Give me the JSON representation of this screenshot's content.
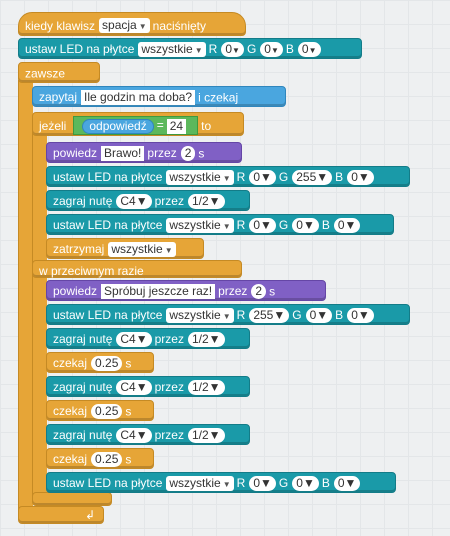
{
  "event": {
    "label1": "kiedy klawisz",
    "key": "spacja",
    "label2": "naciśnięty"
  },
  "led_top": {
    "label": "ustaw LED na płytce",
    "target": "wszystkie",
    "r_label": "R",
    "r": "0",
    "g_label": "G",
    "g": "0",
    "b_label": "B",
    "b": "0"
  },
  "forever": {
    "label": "zawsze"
  },
  "ask": {
    "label1": "zapytaj",
    "question": "Ile godzin ma doba?",
    "label2": "i czekaj"
  },
  "if": {
    "label": "jeżeli",
    "sensor": "odpowiedź",
    "op": "=",
    "value": "24",
    "to": "to"
  },
  "say1": {
    "label": "powiedz",
    "text": "Brawo!",
    "for": "przez",
    "secs": "2",
    "unit": "s"
  },
  "led1": {
    "label": "ustaw LED na płytce",
    "target": "wszystkie",
    "r_label": "R",
    "r": "0",
    "g_label": "G",
    "g": "255",
    "b_label": "B",
    "b": "0"
  },
  "note1": {
    "label": "zagraj nutę",
    "note": "C4",
    "for": "przez",
    "len": "1/2"
  },
  "led2": {
    "label": "ustaw LED na płytce",
    "target": "wszystkie",
    "r_label": "R",
    "r": "0",
    "g_label": "G",
    "g": "0",
    "b_label": "B",
    "b": "0"
  },
  "stop": {
    "label": "zatrzymaj",
    "target": "wszystkie"
  },
  "else": {
    "label": "w przeciwnym razie"
  },
  "say2": {
    "label": "powiedz",
    "text": "Spróbuj jeszcze raz!",
    "for": "przez",
    "secs": "2",
    "unit": "s"
  },
  "led3": {
    "label": "ustaw LED na płytce",
    "target": "wszystkie",
    "r_label": "R",
    "r": "255",
    "g_label": "G",
    "g": "0",
    "b_label": "B",
    "b": "0"
  },
  "note2": {
    "label": "zagraj nutę",
    "note": "C4",
    "for": "przez",
    "len": "1/2"
  },
  "wait1": {
    "label": "czekaj",
    "value": "0.25",
    "unit": "s"
  },
  "note3": {
    "label": "zagraj nutę",
    "note": "C4",
    "for": "przez",
    "len": "1/2"
  },
  "wait2": {
    "label": "czekaj",
    "value": "0.25",
    "unit": "s"
  },
  "note4": {
    "label": "zagraj nutę",
    "note": "C4",
    "for": "przez",
    "len": "1/2"
  },
  "wait3": {
    "label": "czekaj",
    "value": "0.25",
    "unit": "s"
  },
  "led4": {
    "label": "ustaw LED na płytce",
    "target": "wszystkie",
    "r_label": "R",
    "r": "0",
    "g_label": "G",
    "g": "0",
    "b_label": "B",
    "b": "0"
  },
  "icons": {
    "dropdown": "triangle-down-icon",
    "loop": "loop-arrow-icon"
  }
}
